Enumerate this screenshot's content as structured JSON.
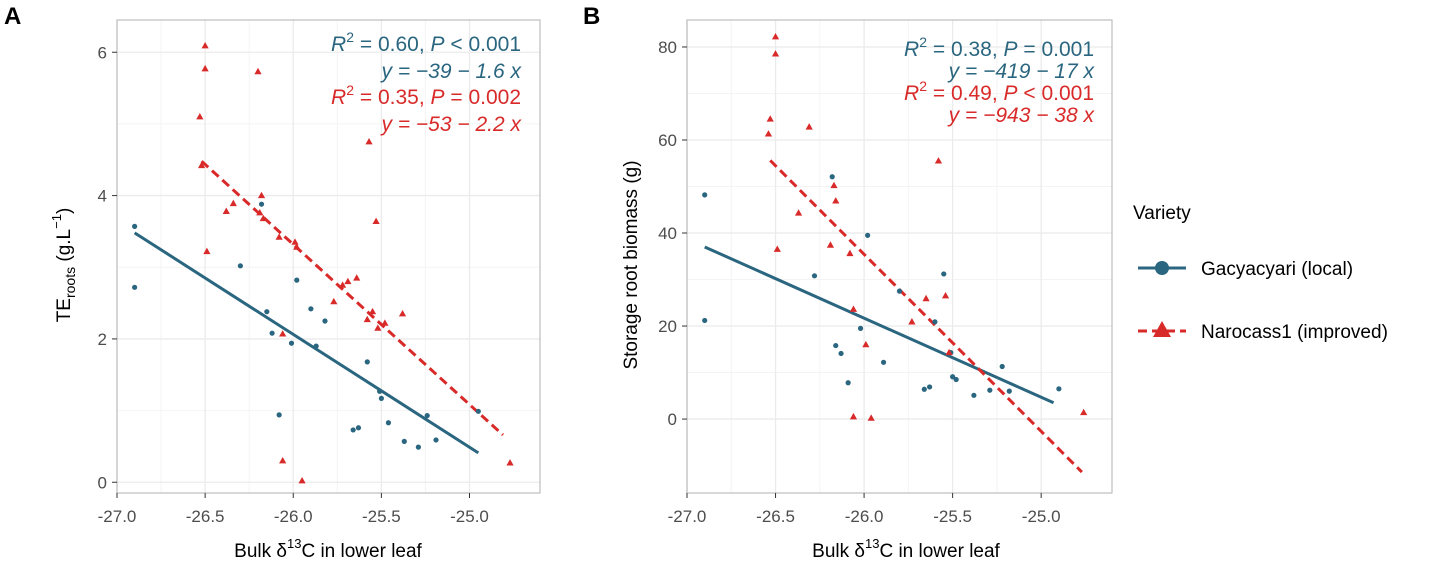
{
  "colors": {
    "local": "#2a667f",
    "improved": "#d92a2a",
    "grid": "#ebebeb",
    "border": "#bdbdbd"
  },
  "legend": {
    "title": "Variety",
    "items": [
      {
        "key": "local",
        "label": "Gacyacyari (local)",
        "shape": "circle",
        "linetype": "solid"
      },
      {
        "key": "improved",
        "label": "Narocass1 (improved)",
        "shape": "triangle",
        "linetype": "dashed"
      }
    ]
  },
  "chart_data": [
    {
      "panel": "A",
      "type": "scatter",
      "xlabel": {
        "prefix": "Bulk δ",
        "sup": "13",
        "suffix": "C in lower leaf"
      },
      "ylabel": {
        "main": "TE",
        "sub": "roots",
        "mid": " (g.L",
        "sup": "−1",
        "end": ")"
      },
      "xlim": [
        -27.0,
        -24.6
      ],
      "ylim": [
        -0.15,
        6.45
      ],
      "xticks": [
        -27.0,
        -26.5,
        -26.0,
        -25.5,
        -25.0
      ],
      "xtick_labels": [
        "-27.0",
        "-26.5",
        "-26.0",
        "-25.5",
        "-25.0"
      ],
      "yticks": [
        0,
        2,
        4,
        6
      ],
      "ytick_labels": [
        "0",
        "2",
        "4",
        "6"
      ],
      "series": [
        {
          "key": "local",
          "points": [
            [
              -26.9,
              3.57
            ],
            [
              -26.9,
              2.72
            ],
            [
              -26.3,
              3.02
            ],
            [
              -26.18,
              3.88
            ],
            [
              -26.15,
              2.38
            ],
            [
              -26.12,
              2.08
            ],
            [
              -26.08,
              0.94
            ],
            [
              -26.01,
              1.94
            ],
            [
              -25.98,
              2.82
            ],
            [
              -25.9,
              2.42
            ],
            [
              -25.87,
              1.9
            ],
            [
              -25.82,
              2.25
            ],
            [
              -25.66,
              0.73
            ],
            [
              -25.63,
              0.76
            ],
            [
              -25.58,
              1.68
            ],
            [
              -25.51,
              1.27
            ],
            [
              -25.5,
              1.17
            ],
            [
              -25.46,
              0.83
            ],
            [
              -25.37,
              0.57
            ],
            [
              -25.29,
              0.49
            ],
            [
              -25.24,
              0.93
            ],
            [
              -25.19,
              0.59
            ],
            [
              -24.95,
              0.99
            ]
          ],
          "fit": {
            "x": [
              -26.9,
              -24.95
            ],
            "y": [
              3.48,
              0.41
            ]
          },
          "stats": {
            "r2_label": "R",
            "r2_sup": "2",
            "r2_val": " = 0.60, ",
            "p_label": "P",
            "p_val": " < 0.001",
            "eq": "y = −39 − 1.6 x"
          }
        },
        {
          "key": "improved",
          "points": [
            [
              -26.53,
              5.1
            ],
            [
              -26.52,
              4.42
            ],
            [
              -26.5,
              6.09
            ],
            [
              -26.5,
              5.77
            ],
            [
              -26.49,
              3.22
            ],
            [
              -26.38,
              3.78
            ],
            [
              -26.34,
              3.89
            ],
            [
              -26.2,
              5.73
            ],
            [
              -26.19,
              3.76
            ],
            [
              -26.18,
              4.0
            ],
            [
              -26.17,
              3.68
            ],
            [
              -26.08,
              3.42
            ],
            [
              -26.06,
              2.07
            ],
            [
              -26.06,
              0.3
            ],
            [
              -25.99,
              3.35
            ],
            [
              -25.98,
              3.28
            ],
            [
              -25.95,
              0.02
            ],
            [
              -25.77,
              2.52
            ],
            [
              -25.72,
              2.75
            ],
            [
              -25.69,
              2.8
            ],
            [
              -25.64,
              2.85
            ],
            [
              -25.58,
              2.27
            ],
            [
              -25.57,
              4.75
            ],
            [
              -25.55,
              2.38
            ],
            [
              -25.53,
              3.64
            ],
            [
              -25.52,
              2.15
            ],
            [
              -25.48,
              2.22
            ],
            [
              -25.38,
              2.35
            ],
            [
              -24.77,
              0.27
            ]
          ],
          "fit": {
            "x": [
              -26.52,
              -24.81
            ],
            "y": [
              4.48,
              0.66
            ]
          },
          "stats": {
            "r2_label": "R",
            "r2_sup": "2",
            "r2_val": " = 0.35, ",
            "p_label": "P",
            "p_val": " = 0.002",
            "eq": "y = −53 − 2.2 x"
          }
        }
      ]
    },
    {
      "panel": "B",
      "type": "scatter",
      "xlabel": {
        "prefix": "Bulk δ",
        "sup": "13",
        "suffix": "C in lower leaf"
      },
      "ylabel": {
        "main": "Storage root biomass (g)"
      },
      "xlim": [
        -27.0,
        -24.6
      ],
      "ylim": [
        -15.9,
        85.8
      ],
      "xticks": [
        -27.0,
        -26.5,
        -26.0,
        -25.5,
        -25.0
      ],
      "xtick_labels": [
        "-27.0",
        "-26.5",
        "-26.0",
        "-25.5",
        "-25.0"
      ],
      "yticks": [
        0,
        20,
        40,
        60,
        80
      ],
      "ytick_labels": [
        "0",
        "20",
        "40",
        "60",
        "80"
      ],
      "series": [
        {
          "key": "local",
          "points": [
            [
              -26.9,
              48.2
            ],
            [
              -26.9,
              21.2
            ],
            [
              -26.28,
              30.8
            ],
            [
              -26.18,
              52.1
            ],
            [
              -26.16,
              15.8
            ],
            [
              -26.13,
              14.1
            ],
            [
              -26.09,
              7.8
            ],
            [
              -26.02,
              19.5
            ],
            [
              -25.98,
              39.5
            ],
            [
              -25.89,
              12.2
            ],
            [
              -25.8,
              27.5
            ],
            [
              -25.66,
              6.4
            ],
            [
              -25.63,
              6.9
            ],
            [
              -25.6,
              20.9
            ],
            [
              -25.55,
              31.2
            ],
            [
              -25.51,
              14.3
            ],
            [
              -25.5,
              9.1
            ],
            [
              -25.48,
              8.5
            ],
            [
              -25.38,
              5.1
            ],
            [
              -25.29,
              6.2
            ],
            [
              -25.22,
              11.3
            ],
            [
              -25.18,
              6.0
            ],
            [
              -24.9,
              6.5
            ]
          ],
          "fit": {
            "x": [
              -26.9,
              -24.93
            ],
            "y": [
              37.0,
              3.5
            ]
          },
          "stats": {
            "r2_label": "R",
            "r2_sup": "2",
            "r2_val": " = 0.38,  ",
            "p_label": "P",
            "p_val": " = 0.001",
            "eq": "y = −419 − 17 x"
          }
        },
        {
          "key": "improved",
          "points": [
            [
              -26.54,
              61.3
            ],
            [
              -26.53,
              64.5
            ],
            [
              -26.5,
              82.2
            ],
            [
              -26.5,
              78.5
            ],
            [
              -26.49,
              36.5
            ],
            [
              -26.37,
              44.3
            ],
            [
              -26.31,
              62.8
            ],
            [
              -26.19,
              37.4
            ],
            [
              -26.17,
              50.2
            ],
            [
              -26.16,
              46.9
            ],
            [
              -26.08,
              35.6
            ],
            [
              -26.06,
              0.5
            ],
            [
              -26.06,
              23.6
            ],
            [
              -25.99,
              16.0
            ],
            [
              -25.96,
              0.2
            ],
            [
              -25.73,
              20.9
            ],
            [
              -25.65,
              25.9
            ],
            [
              -25.58,
              55.5
            ],
            [
              -25.54,
              26.5
            ],
            [
              -25.52,
              14.3
            ],
            [
              -24.76,
              1.4
            ]
          ],
          "fit": {
            "x": [
              -26.53,
              -24.77
            ],
            "y": [
              55.6,
              -11.4
            ]
          },
          "stats": {
            "r2_label": "R",
            "r2_sup": "2",
            "r2_val": " = 0.49,  ",
            "p_label": "P",
            "p_val": " < 0.001",
            "eq": "y = −943 − 38 x"
          }
        }
      ]
    }
  ]
}
